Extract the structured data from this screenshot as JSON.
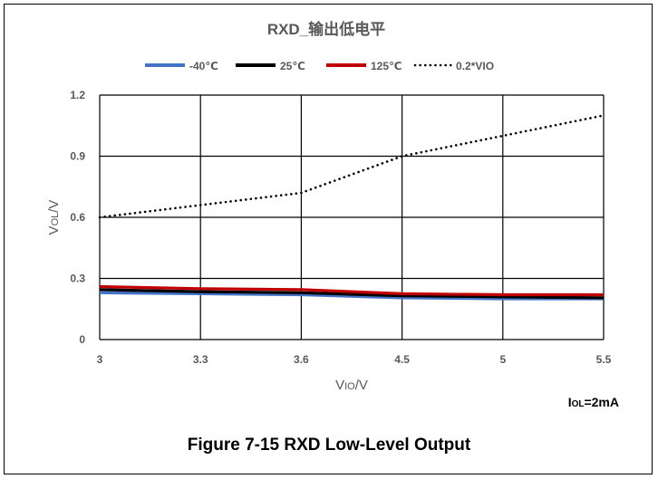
{
  "chart_data": {
    "type": "line",
    "title": "RXD_输出低电平",
    "xlabel": "VIO/V",
    "xlabel_main": "V",
    "xlabel_sub": "IO",
    "xlabel_unit": "/V",
    "ylabel": "VOL/V",
    "ylabel_main": "V",
    "ylabel_sub": "OL",
    "ylabel_unit": "/V",
    "annotation": "IOL=2mA",
    "annotation_main": "I",
    "annotation_sub": "OL",
    "annotation_rest": "=2mA",
    "categories": [
      "3",
      "3.3",
      "3.6",
      "4.5",
      "5",
      "5.5"
    ],
    "yticks": [
      "0",
      "0.3",
      "0.6",
      "0.9",
      "1.2"
    ],
    "ylim": [
      0,
      1.2
    ],
    "grid": true,
    "legend_position": "top",
    "series": [
      {
        "name": "-40℃",
        "color": "#4472C4",
        "style": "solid",
        "values": [
          0.23,
          0.225,
          0.22,
          0.205,
          0.2,
          0.2
        ]
      },
      {
        "name": "25℃",
        "color": "#000000",
        "style": "solid",
        "values": [
          0.245,
          0.235,
          0.23,
          0.215,
          0.21,
          0.205
        ]
      },
      {
        "name": "125℃",
        "color": "#C00000",
        "style": "solid",
        "values": [
          0.26,
          0.25,
          0.245,
          0.225,
          0.22,
          0.22
        ]
      },
      {
        "name": "0.2*VIO",
        "color": "#000000",
        "style": "dotted",
        "values": [
          0.6,
          0.66,
          0.72,
          0.9,
          1.0,
          1.1
        ]
      }
    ]
  },
  "caption": "Figure 7-15  RXD Low-Level Output"
}
